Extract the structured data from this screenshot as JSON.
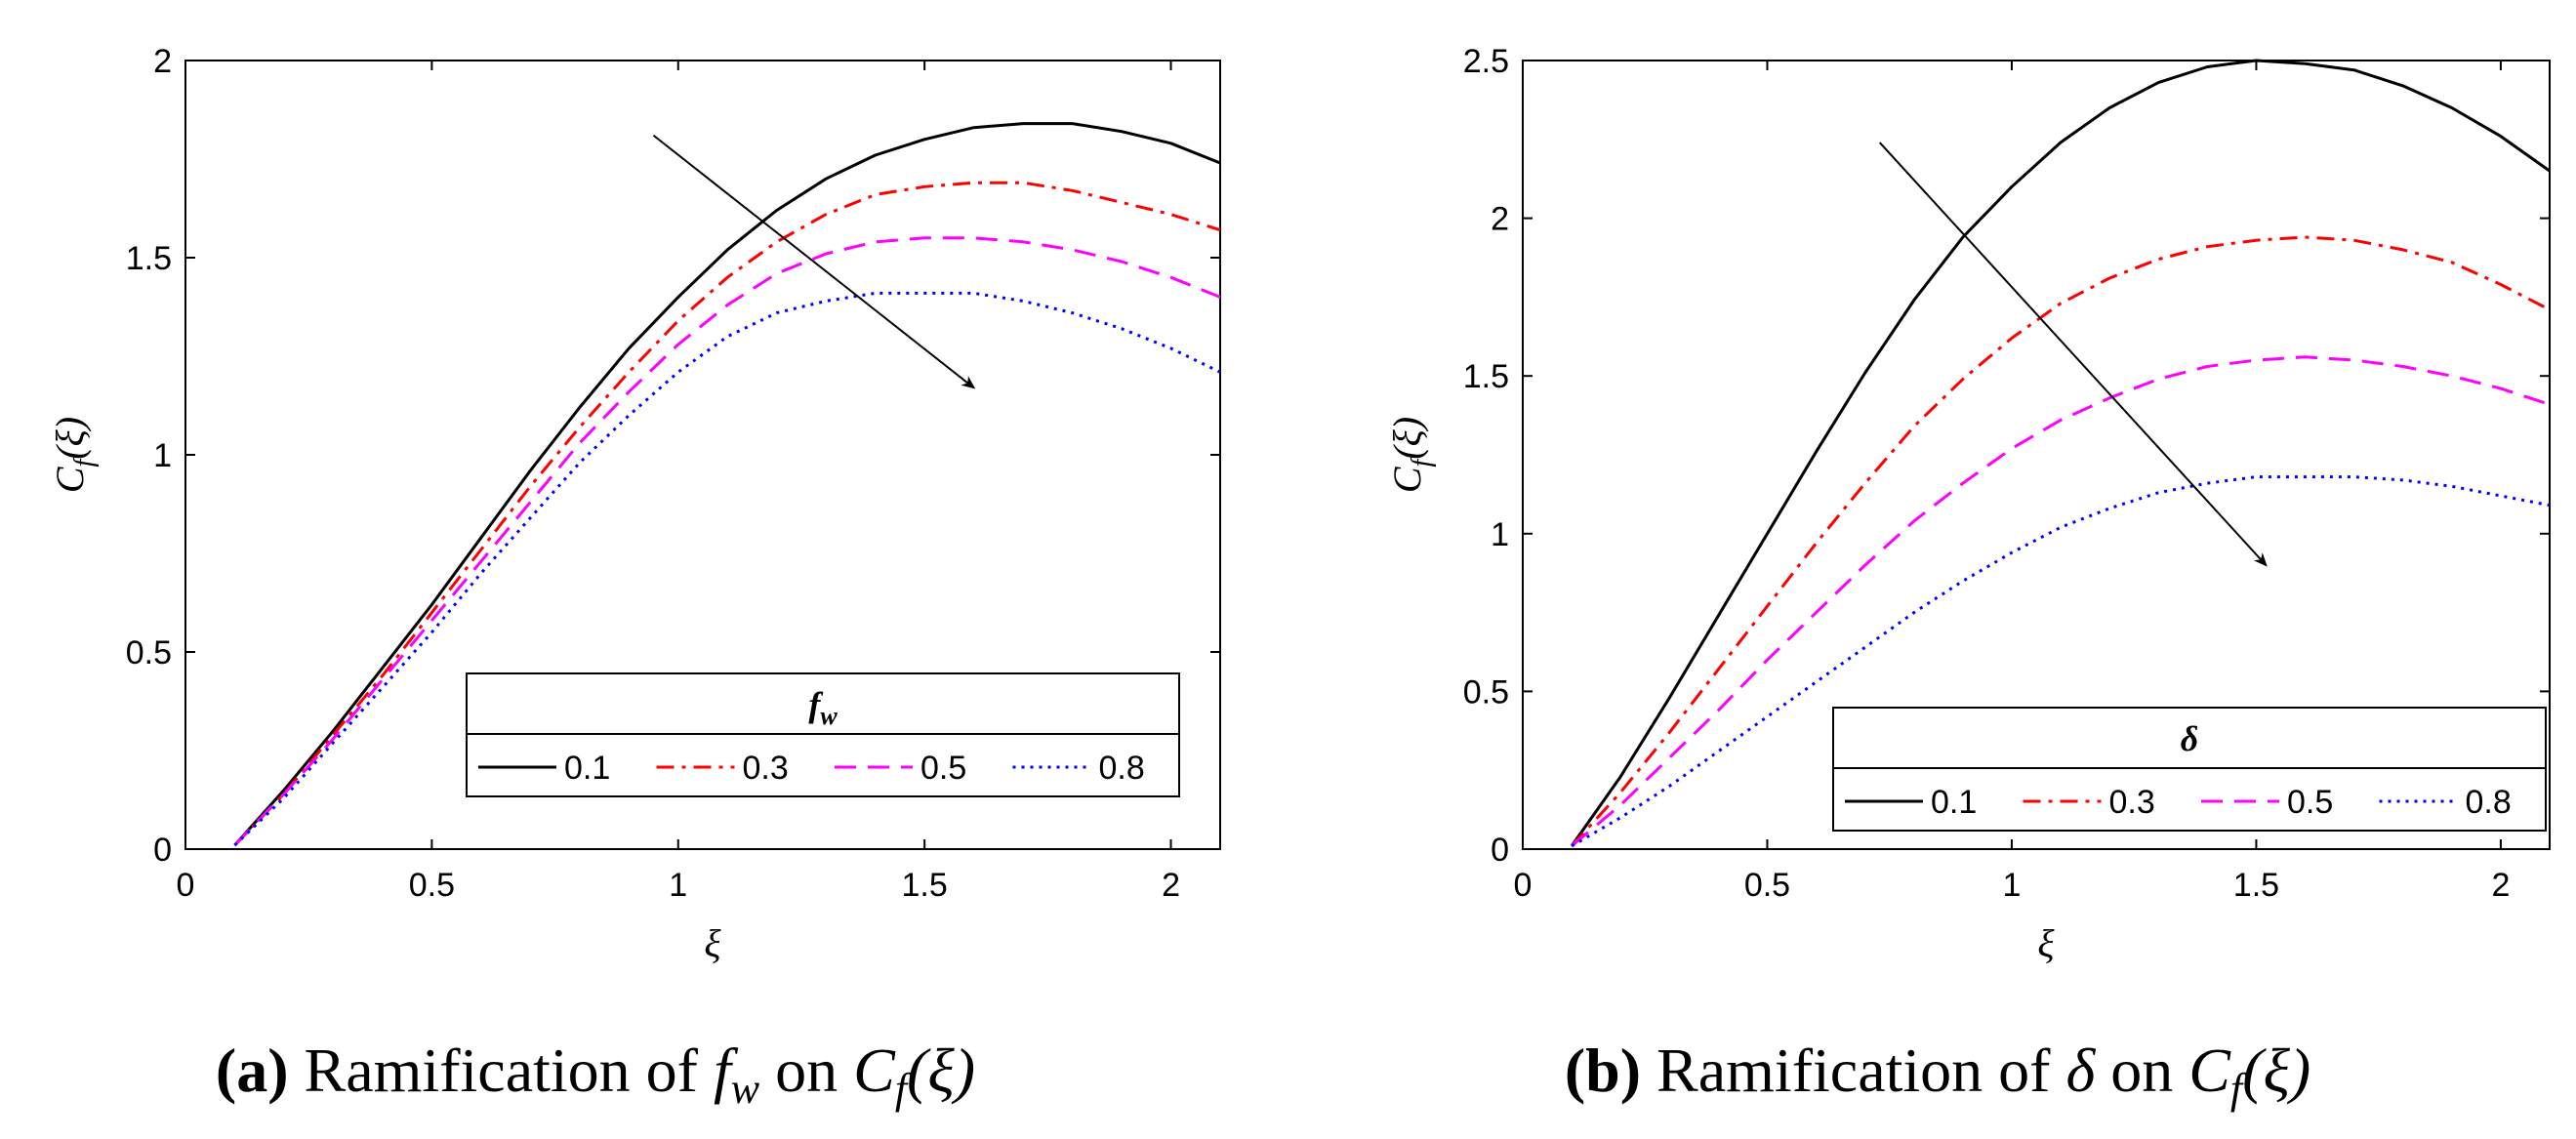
{
  "chart_data": [
    {
      "id": "a",
      "type": "line",
      "xlabel": "ξ",
      "ylabel": "C_f(ξ)",
      "ylabel_main": "C",
      "ylabel_sub": "f",
      "ylabel_arg": "(ξ)",
      "xlim": [
        0,
        2.1
      ],
      "ylim": [
        0,
        2
      ],
      "xticks": [
        0,
        0.5,
        1,
        1.5,
        2
      ],
      "xtick_labels": [
        "0",
        "0.5",
        "1",
        "1.5",
        "2"
      ],
      "yticks": [
        0,
        0.5,
        1,
        1.5,
        2
      ],
      "ytick_labels": [
        "0",
        "0.5",
        "1",
        "1.5",
        "2"
      ],
      "legend_title": "f_w",
      "legend_title_main": "f",
      "legend_title_sub": "w",
      "arrow_from": [
        0.95,
        1.81
      ],
      "arrow_to": [
        1.6,
        1.17
      ],
      "x": [
        0.1,
        0.2,
        0.3,
        0.4,
        0.5,
        0.6,
        0.7,
        0.8,
        0.9,
        1.0,
        1.1,
        1.2,
        1.3,
        1.4,
        1.5,
        1.6,
        1.7,
        1.8,
        1.9,
        2.0,
        2.1
      ],
      "series": [
        {
          "name": "0.1",
          "label": "0.1",
          "color": "#000000",
          "dash": "solid",
          "values": [
            0.01,
            0.15,
            0.3,
            0.46,
            0.62,
            0.79,
            0.96,
            1.12,
            1.27,
            1.4,
            1.52,
            1.62,
            1.7,
            1.76,
            1.8,
            1.83,
            1.84,
            1.84,
            1.82,
            1.79,
            1.74
          ]
        },
        {
          "name": "0.3",
          "label": "0.3",
          "color": "#ff0000",
          "dash": "dashdot",
          "values": [
            0.01,
            0.14,
            0.29,
            0.44,
            0.6,
            0.76,
            0.92,
            1.07,
            1.21,
            1.34,
            1.45,
            1.54,
            1.61,
            1.66,
            1.68,
            1.69,
            1.69,
            1.67,
            1.64,
            1.61,
            1.57
          ]
        },
        {
          "name": "0.5",
          "label": "0.5",
          "color": "#ff00ff",
          "dash": "dashed",
          "values": [
            0.01,
            0.14,
            0.28,
            0.43,
            0.58,
            0.73,
            0.88,
            1.03,
            1.16,
            1.28,
            1.38,
            1.46,
            1.51,
            1.54,
            1.55,
            1.55,
            1.54,
            1.52,
            1.49,
            1.45,
            1.4
          ]
        },
        {
          "name": "0.8",
          "label": "0.8",
          "color": "#0000ff",
          "dash": "dotted",
          "values": [
            0.01,
            0.13,
            0.27,
            0.41,
            0.55,
            0.7,
            0.84,
            0.98,
            1.1,
            1.21,
            1.3,
            1.36,
            1.39,
            1.41,
            1.41,
            1.41,
            1.39,
            1.36,
            1.32,
            1.27,
            1.21
          ]
        }
      ]
    },
    {
      "id": "b",
      "type": "line",
      "xlabel": "ξ",
      "ylabel": "C_f(ξ)",
      "ylabel_main": "C",
      "ylabel_sub": "f",
      "ylabel_arg": "(ξ)",
      "xlim": [
        0,
        2.1
      ],
      "ylim": [
        0,
        2.5
      ],
      "xticks": [
        0,
        0.5,
        1,
        1.5,
        2
      ],
      "xtick_labels": [
        "0",
        "0.5",
        "1",
        "1.5",
        "2"
      ],
      "yticks": [
        0,
        0.5,
        1,
        1.5,
        2,
        2.5
      ],
      "ytick_labels": [
        "0",
        "0.5",
        "1",
        "1.5",
        "2",
        "2.5"
      ],
      "legend_title": "δ",
      "legend_title_main": "δ",
      "legend_title_sub": "",
      "arrow_from": [
        0.73,
        2.24
      ],
      "arrow_to": [
        1.52,
        0.9
      ],
      "x": [
        0.1,
        0.2,
        0.3,
        0.4,
        0.5,
        0.6,
        0.7,
        0.8,
        0.9,
        1.0,
        1.1,
        1.2,
        1.3,
        1.4,
        1.5,
        1.6,
        1.7,
        1.8,
        1.9,
        2.0,
        2.1
      ],
      "series": [
        {
          "name": "0.1",
          "label": "0.1",
          "color": "#000000",
          "dash": "solid",
          "values": [
            0.01,
            0.23,
            0.48,
            0.74,
            1.0,
            1.26,
            1.51,
            1.74,
            1.94,
            2.1,
            2.24,
            2.35,
            2.43,
            2.48,
            2.5,
            2.49,
            2.47,
            2.42,
            2.35,
            2.26,
            2.15
          ]
        },
        {
          "name": "0.3",
          "label": "0.3",
          "color": "#ff0000",
          "dash": "dashdot",
          "values": [
            0.01,
            0.18,
            0.37,
            0.57,
            0.77,
            0.97,
            1.16,
            1.34,
            1.49,
            1.62,
            1.73,
            1.81,
            1.87,
            1.91,
            1.93,
            1.94,
            1.93,
            1.9,
            1.86,
            1.79,
            1.71
          ]
        },
        {
          "name": "0.5",
          "label": "0.5",
          "color": "#ff00ff",
          "dash": "dashed",
          "values": [
            0.01,
            0.14,
            0.29,
            0.44,
            0.6,
            0.75,
            0.9,
            1.04,
            1.16,
            1.27,
            1.36,
            1.43,
            1.49,
            1.53,
            1.55,
            1.56,
            1.55,
            1.53,
            1.5,
            1.46,
            1.41
          ]
        },
        {
          "name": "0.8",
          "label": "0.8",
          "color": "#0000ff",
          "dash": "dotted",
          "values": [
            0.01,
            0.1,
            0.2,
            0.31,
            0.42,
            0.53,
            0.64,
            0.75,
            0.85,
            0.94,
            1.02,
            1.08,
            1.13,
            1.16,
            1.18,
            1.18,
            1.18,
            1.17,
            1.15,
            1.12,
            1.09
          ]
        }
      ]
    }
  ],
  "captions": [
    {
      "letter": "(a)",
      "prefix": " Ramification of ",
      "symbol_main": "f",
      "symbol_sub": "w",
      "middle": " on ",
      "func_main": "C",
      "func_sub": "f",
      "func_arg": "(ξ)"
    },
    {
      "letter": "(b)",
      "prefix": " Ramification of ",
      "symbol_main": "δ",
      "symbol_sub": "",
      "middle": " on ",
      "func_main": "C",
      "func_sub": "f",
      "func_arg": "(ξ)"
    }
  ]
}
